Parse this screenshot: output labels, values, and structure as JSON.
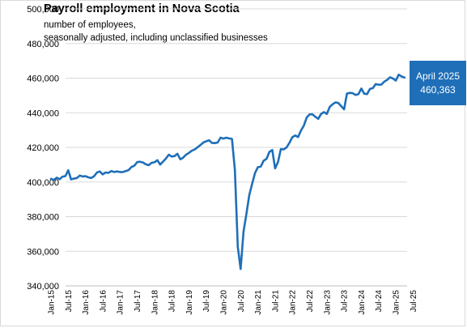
{
  "chart_data": {
    "type": "line",
    "title": "Payroll employment in Nova Scotia",
    "subtitle_lines": [
      "number of employees,",
      "seasonally adjusted, including unclassified businesses"
    ],
    "xlabel": "",
    "ylabel": "",
    "ylim": [
      340000,
      500000
    ],
    "y_ticks": [
      "340,000",
      "360,000",
      "380,000",
      "400,000",
      "420,000",
      "440,000",
      "460,000",
      "480,000",
      "500,000"
    ],
    "x_ticks": [
      "Jan-15",
      "Jul-15",
      "Jan-16",
      "Jul-16",
      "Jan-17",
      "Jul-17",
      "Jan-18",
      "Jul-18",
      "Jan-19",
      "Jul-19",
      "Jan-20",
      "Jul-20",
      "Jan-21",
      "Jul-21",
      "Jan-22",
      "Jul-22",
      "Jan-23",
      "Jul-23",
      "Jan-24",
      "Jul-24",
      "Jan-25",
      "Jul-25"
    ],
    "grid": "horizontal",
    "series_color": "#1f6fb8",
    "callout": {
      "line1": "April 2025",
      "line2": "460,363"
    },
    "x": [
      "2015-01",
      "2015-02",
      "2015-03",
      "2015-04",
      "2015-05",
      "2015-06",
      "2015-07",
      "2015-08",
      "2015-09",
      "2015-10",
      "2015-11",
      "2015-12",
      "2016-01",
      "2016-02",
      "2016-03",
      "2016-04",
      "2016-05",
      "2016-06",
      "2016-07",
      "2016-08",
      "2016-09",
      "2016-10",
      "2016-11",
      "2016-12",
      "2017-01",
      "2017-02",
      "2017-03",
      "2017-04",
      "2017-05",
      "2017-06",
      "2017-07",
      "2017-08",
      "2017-09",
      "2017-10",
      "2017-11",
      "2017-12",
      "2018-01",
      "2018-02",
      "2018-03",
      "2018-04",
      "2018-05",
      "2018-06",
      "2018-07",
      "2018-08",
      "2018-09",
      "2018-10",
      "2018-11",
      "2018-12",
      "2019-01",
      "2019-02",
      "2019-03",
      "2019-04",
      "2019-05",
      "2019-06",
      "2019-07",
      "2019-08",
      "2019-09",
      "2019-10",
      "2019-11",
      "2019-12",
      "2020-01",
      "2020-02",
      "2020-03",
      "2020-04",
      "2020-05",
      "2020-06",
      "2020-07",
      "2020-08",
      "2020-09",
      "2020-10",
      "2020-11",
      "2020-12",
      "2021-01",
      "2021-02",
      "2021-03",
      "2021-04",
      "2021-05",
      "2021-06",
      "2021-07",
      "2021-08",
      "2021-09",
      "2021-10",
      "2021-11",
      "2021-12",
      "2022-01",
      "2022-02",
      "2022-03",
      "2022-04",
      "2022-05",
      "2022-06",
      "2022-07",
      "2022-08",
      "2022-09",
      "2022-10",
      "2022-11",
      "2022-12",
      "2023-01",
      "2023-02",
      "2023-03",
      "2023-04",
      "2023-05",
      "2023-06",
      "2023-07",
      "2023-08",
      "2023-09",
      "2023-10",
      "2023-11",
      "2023-12",
      "2024-01",
      "2024-02",
      "2024-03",
      "2024-04",
      "2024-05",
      "2024-06",
      "2024-07",
      "2024-08",
      "2024-09",
      "2024-10",
      "2024-11",
      "2024-12",
      "2025-01",
      "2025-02",
      "2025-03",
      "2025-04"
    ],
    "series": [
      {
        "values": [
          401800,
          401200,
          402500,
          401600,
          403100,
          403400,
          406800,
          401500,
          402000,
          402300,
          403700,
          403200,
          403400,
          402700,
          402300,
          403400,
          405500,
          406100,
          404400,
          405500,
          405300,
          406300,
          405800,
          406100,
          405800,
          405800,
          406300,
          406900,
          408700,
          409400,
          411500,
          411700,
          411300,
          410200,
          409700,
          411100,
          411400,
          412600,
          410100,
          411800,
          413600,
          415800,
          414700,
          415000,
          416300,
          413100,
          414100,
          415800,
          416800,
          418100,
          418800,
          420100,
          421300,
          422800,
          423500,
          424100,
          422600,
          422500,
          422800,
          425600,
          425100,
          425600,
          425200,
          424900,
          407000,
          362500,
          349800,
          371400,
          381400,
          392500,
          398900,
          405200,
          408600,
          408900,
          412300,
          413400,
          417400,
          418500,
          407900,
          411600,
          419000,
          418900,
          420000,
          422700,
          425900,
          426900,
          426000,
          429800,
          432600,
          437300,
          439100,
          439100,
          437700,
          436500,
          439300,
          440400,
          439300,
          443400,
          444900,
          446000,
          445700,
          443800,
          442000,
          451100,
          451500,
          451300,
          450300,
          450800,
          454000,
          451000,
          450800,
          453800,
          454200,
          456600,
          456200,
          456300,
          458000,
          459000,
          460500,
          459800,
          458600,
          462000,
          461000,
          460363
        ]
      }
    ]
  }
}
